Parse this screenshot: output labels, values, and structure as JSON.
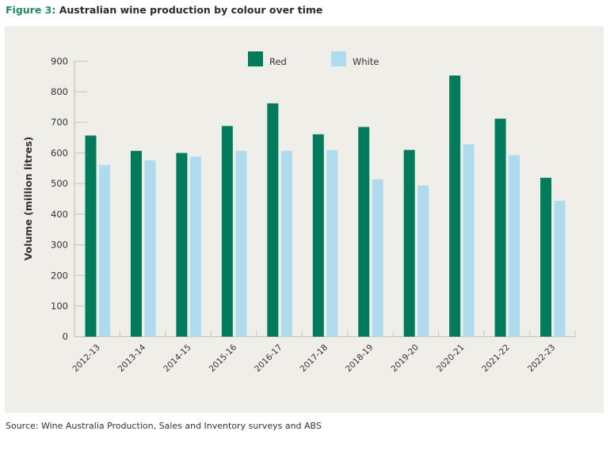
{
  "title": {
    "prefix": "Figure 3:",
    "text": " Australian wine production by colour over time"
  },
  "source": "Source: Wine Australia Production, Sales and Inventory surveys and ABS",
  "chart_data": {
    "type": "bar",
    "title": "Australian wine production by colour over time",
    "xlabel": "",
    "ylabel": "Volume (million litres)",
    "ylim": [
      0,
      900
    ],
    "yticks": [
      0,
      100,
      200,
      300,
      400,
      500,
      600,
      700,
      800,
      900
    ],
    "grid": false,
    "legend_position": "top-center",
    "categories": [
      "2012-13",
      "2013-14",
      "2014-15",
      "2015-16",
      "2016-17",
      "2017-18",
      "2018-19",
      "2019-20",
      "2020-21",
      "2021-22",
      "2022-23"
    ],
    "series": [
      {
        "name": "Red",
        "color": "#007b5c",
        "values": [
          657,
          607,
          600,
          688,
          762,
          661,
          685,
          610,
          853,
          712,
          519
        ]
      },
      {
        "name": "White",
        "color": "#aedcee",
        "values": [
          561,
          576,
          588,
          607,
          607,
          610,
          514,
          494,
          628,
          593,
          444
        ]
      }
    ]
  }
}
